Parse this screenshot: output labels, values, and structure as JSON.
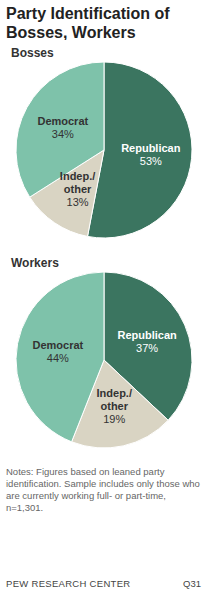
{
  "title": "Party Identification of Bosses, Workers",
  "chart_data": [
    {
      "type": "pie",
      "title": "Bosses",
      "categories": [
        "Republican",
        "Indep./ other",
        "Democrat"
      ],
      "values": [
        53,
        13,
        34
      ],
      "value_labels": [
        "53%",
        "13%",
        "34%"
      ],
      "colors": [
        "#3b7560",
        "#d9d4c3",
        "#7ec2aa"
      ],
      "data_labels": true
    },
    {
      "type": "pie",
      "title": "Workers",
      "categories": [
        "Republican",
        "Indep./ other",
        "Democrat"
      ],
      "values": [
        37,
        19,
        44
      ],
      "value_labels": [
        "37%",
        "19%",
        "44%"
      ],
      "colors": [
        "#3b7560",
        "#d9d4c3",
        "#7ec2aa"
      ],
      "data_labels": true
    }
  ],
  "notes": "Notes: Figures based on leaned party identification. Sample includes only those who are currently working full- or part-time, n=1,301.",
  "source": "PEW RESEARCH CENTER",
  "code": "Q31"
}
